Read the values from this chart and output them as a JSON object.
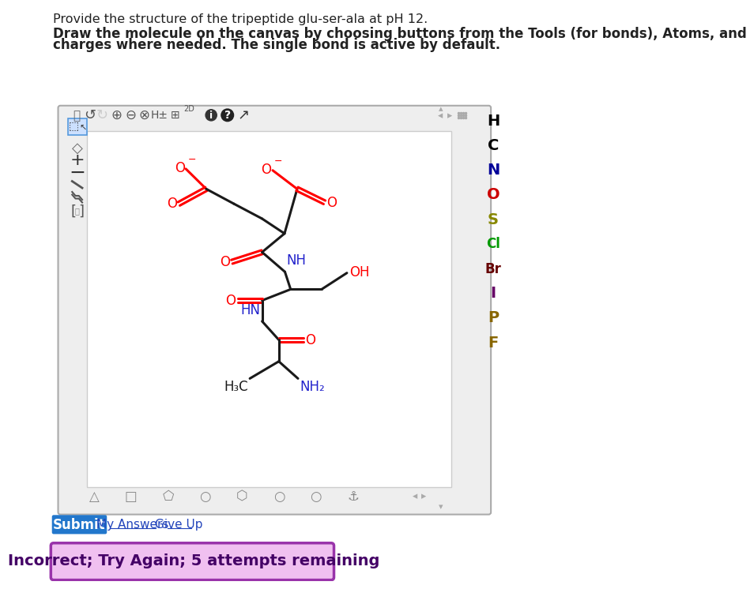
{
  "title_line1": "Provide the structure of the tripeptide glu-ser-ala at pH 12.",
  "title_line2": "Draw the molecule on the canvas by choosing buttons from the Tools (for bonds), Atoms, and",
  "title_line3": "charges where needed. The single bond is active by default.",
  "submit_text": "Submit",
  "my_answers_text": "My Answers",
  "give_up_text": "Give Up",
  "incorrect_text": "Incorrect; Try Again; 5 attempts remaining",
  "bg_white": "#ffffff",
  "bond_black": "#1a1a1a",
  "atom_red": "#ff0000",
  "atom_blue": "#2222cc",
  "submit_bg": "#2277cc",
  "incorrect_bg": "#f0c0f0",
  "incorrect_border": "#9933aa",
  "incorrect_text_color": "#440066",
  "elements": [
    [
      "H",
      "#000000"
    ],
    [
      "C",
      "#000000"
    ],
    [
      "N",
      "#000099"
    ],
    [
      "O",
      "#cc0000"
    ],
    [
      "S",
      "#888800"
    ],
    [
      "Cl",
      "#009900"
    ],
    [
      "Br",
      "#660000"
    ],
    [
      "I",
      "#660066"
    ],
    [
      "P",
      "#886600"
    ],
    [
      "F",
      "#886600"
    ]
  ]
}
